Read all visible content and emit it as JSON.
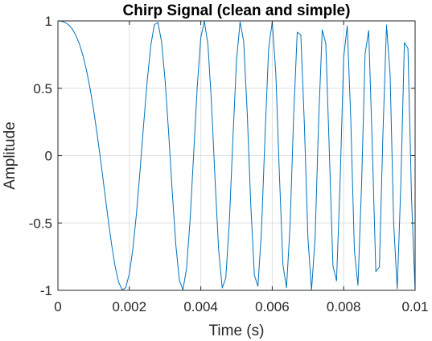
{
  "chart_data": {
    "type": "line",
    "title": "Chirp Signal (clean and simple)",
    "xlabel": "Time (s)",
    "ylabel": "Amplitude",
    "xlim": [
      0,
      0.01
    ],
    "ylim": [
      -1,
      1
    ],
    "grid": true,
    "legend": "none",
    "x_ticks": [
      0,
      0.002,
      0.004,
      0.006,
      0.008,
      0.01
    ],
    "x_tick_labels": [
      "0",
      "0.002",
      "0.004",
      "0.006",
      "0.008",
      "0.01"
    ],
    "y_ticks": [
      -1,
      -0.5,
      0,
      0.5,
      1
    ],
    "y_tick_labels": [
      "-1",
      "-0.5",
      "0",
      "0.5",
      "1"
    ],
    "line_color": "#0072BD",
    "series": [
      {
        "signal": "chirp",
        "amplitude": 1,
        "f0_hz": 100,
        "t1_s": 0.01,
        "f1_hz": 2000,
        "method": "linear",
        "sample_rate_hz": 10000,
        "t_start_s": 0,
        "t_end_s": 0.01
      }
    ]
  }
}
